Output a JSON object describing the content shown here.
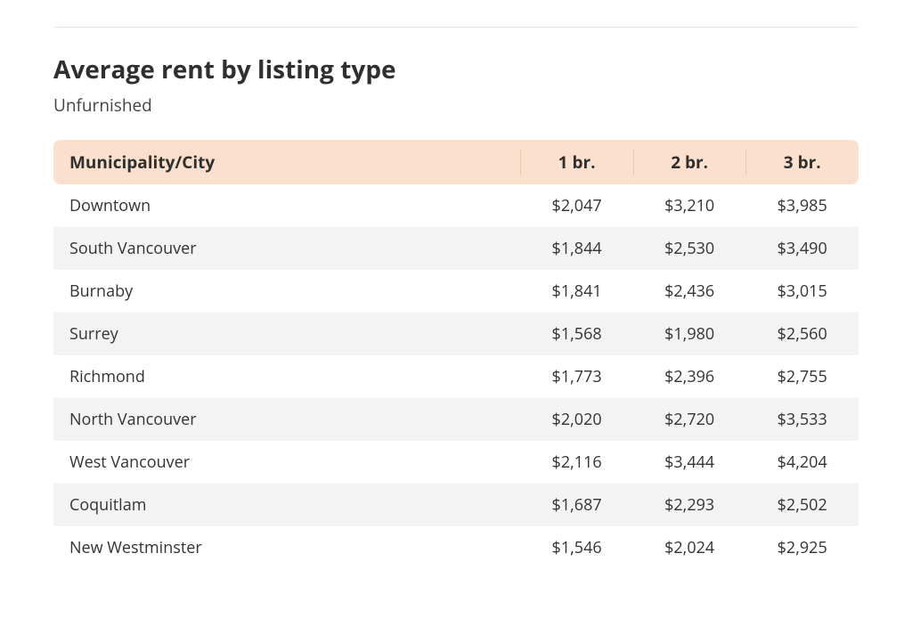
{
  "title": "Average rent by listing type",
  "subtitle": "Unfurnished",
  "table": {
    "type": "table",
    "header_bg": "#fbe0cd",
    "row_alt_bg": "#f3f3f3",
    "text_color": "#333333",
    "header_fontsize": 19,
    "cell_fontsize": 18,
    "columns": [
      "Municipality/City",
      "1 br.",
      "2 br.",
      "3 br."
    ],
    "column_align": [
      "left",
      "center",
      "center",
      "center"
    ],
    "column_widths_pct": [
      58,
      14,
      14,
      14
    ],
    "rows": [
      [
        "Downtown",
        "$2,047",
        "$3,210",
        "$3,985"
      ],
      [
        "South Vancouver",
        "$1,844",
        "$2,530",
        "$3,490"
      ],
      [
        "Burnaby",
        "$1,841",
        "$2,436",
        "$3,015"
      ],
      [
        "Surrey",
        "$1,568",
        "$1,980",
        "$2,560"
      ],
      [
        "Richmond",
        "$1,773",
        "$2,396",
        "$2,755"
      ],
      [
        "North Vancouver",
        "$2,020",
        "$2,720",
        "$3,533"
      ],
      [
        "West Vancouver",
        "$2,116",
        "$3,444",
        "$4,204"
      ],
      [
        "Coquitlam",
        "$1,687",
        "$2,293",
        "$2,502"
      ],
      [
        "New Westminster",
        "$1,546",
        "$2,024",
        "$2,925"
      ]
    ]
  }
}
